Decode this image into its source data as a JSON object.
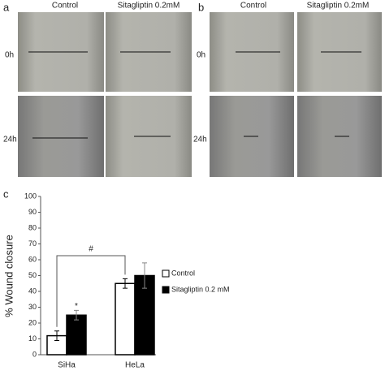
{
  "panels": {
    "a": {
      "label": "a",
      "columns": [
        "Control",
        "Sitagliptin 0.2mM"
      ],
      "rows": [
        "0h",
        "24h"
      ]
    },
    "b": {
      "label": "b",
      "columns": [
        "Control",
        "Sitagliptin 0.2mM"
      ],
      "rows": [
        "0h",
        "24h"
      ]
    }
  },
  "chart_data": {
    "type": "bar",
    "panel_label": "c",
    "y_label": "% Wound closure",
    "categories": [
      "SiHa",
      "HeLa"
    ],
    "series": [
      {
        "name": "Control",
        "color": "#ffffff",
        "values": [
          12,
          45
        ],
        "errors": [
          3,
          3
        ]
      },
      {
        "name": "Sitagliptin 0.2 mM",
        "color": "#000000",
        "values": [
          25,
          50
        ],
        "errors": [
          3,
          8
        ]
      }
    ],
    "ylim": [
      0,
      100
    ],
    "yticks": [
      0,
      10,
      20,
      30,
      40,
      50,
      60,
      70,
      80,
      90,
      100
    ],
    "annotations": [
      "#",
      "*"
    ],
    "legend": "right"
  }
}
